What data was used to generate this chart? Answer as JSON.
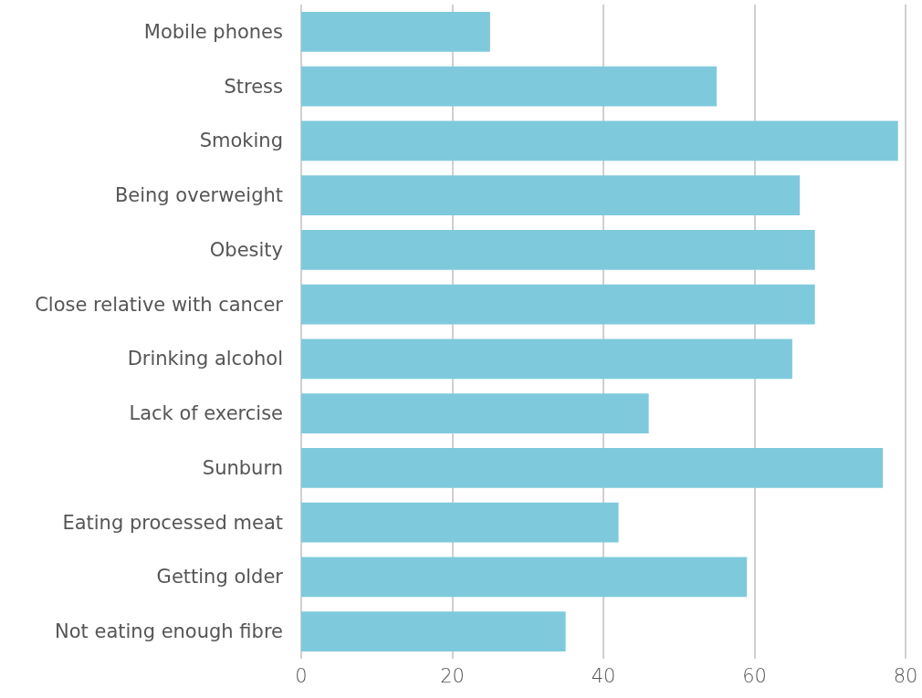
{
  "chart_data": {
    "type": "bar",
    "orientation": "horizontal",
    "categories": [
      "Mobile phones",
      "Stress",
      "Smoking",
      "Being overweight",
      "Obesity",
      "Close relative with cancer",
      "Drinking alcohol",
      "Lack of exercise",
      "Sunburn",
      "Eating processed meat",
      "Getting older",
      "Not eating enough fibre"
    ],
    "values": [
      25,
      55,
      79,
      66,
      68,
      68,
      65,
      46,
      77,
      42,
      59,
      35
    ],
    "color": "#7ecadc",
    "xlim": [
      0,
      80
    ],
    "xticks": [
      0,
      20,
      40,
      60,
      80
    ],
    "grid": "x"
  }
}
